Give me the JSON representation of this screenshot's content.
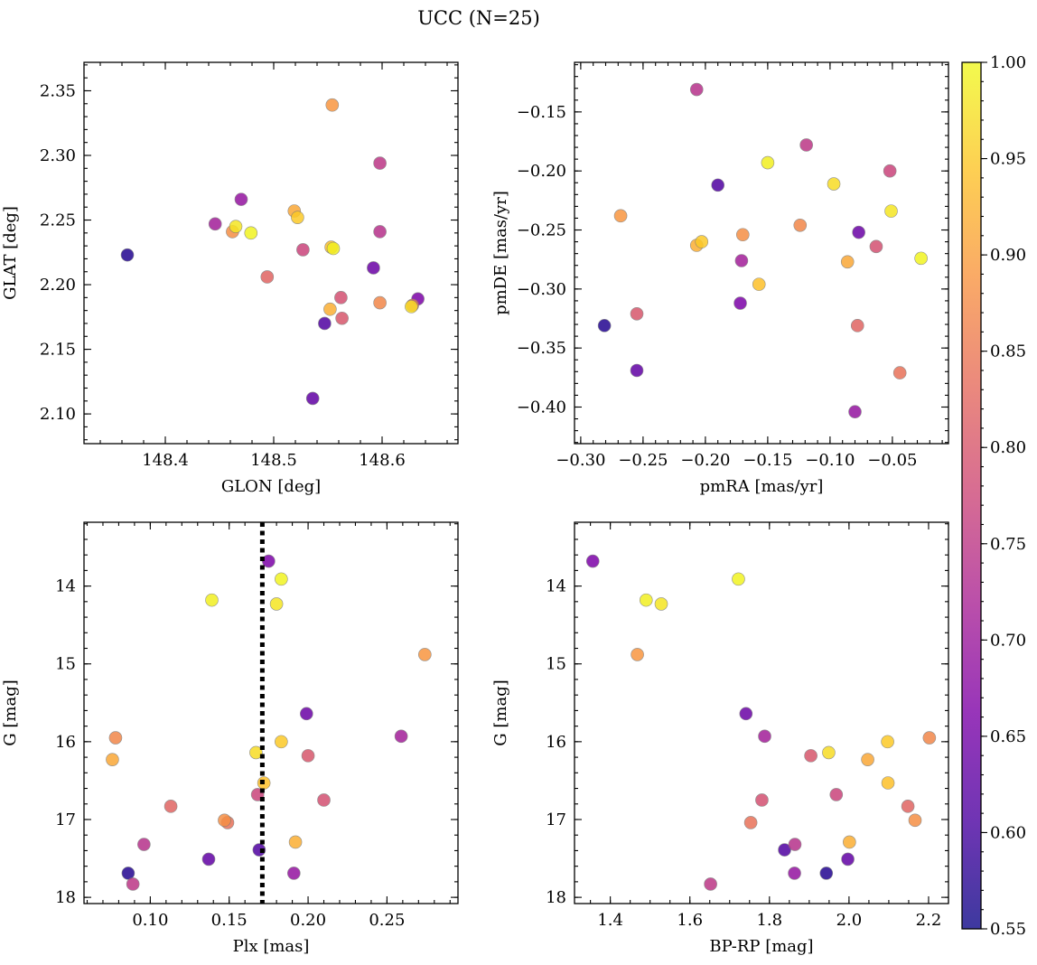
{
  "chart_data": {
    "type": "scatter",
    "title": "UCC (N=25)",
    "colormap": "plasma",
    "colorbar": {
      "range": [
        0.55,
        1.0
      ],
      "ticks": [
        "0.55",
        "0.60",
        "0.65",
        "0.70",
        "0.75",
        "0.80",
        "0.85",
        "0.90",
        "0.95",
        "1.00"
      ],
      "tick_values": [
        0.55,
        0.6,
        0.65,
        0.7,
        0.75,
        0.8,
        0.85,
        0.9,
        0.95,
        1.0
      ]
    },
    "members": [
      {
        "glon": 148.365,
        "glat": 2.223,
        "pmra": -0.281,
        "pmde": -0.331,
        "plx": 0.086,
        "g": 17.69,
        "bprp": 1.943,
        "prob": 0.57
      },
      {
        "glon": 148.536,
        "glat": 2.112,
        "pmra": -0.255,
        "pmde": -0.369,
        "plx": 0.137,
        "g": 17.51,
        "bprp": 1.997,
        "prob": 0.63
      },
      {
        "glon": 148.547,
        "glat": 2.17,
        "pmra": -0.19,
        "pmde": -0.212,
        "plx": 0.169,
        "g": 17.39,
        "bprp": 1.838,
        "prob": 0.61
      },
      {
        "glon": 148.592,
        "glat": 2.213,
        "pmra": -0.077,
        "pmde": -0.252,
        "plx": 0.199,
        "g": 15.64,
        "bprp": 1.741,
        "prob": 0.64
      },
      {
        "glon": 148.633,
        "glat": 2.189,
        "pmra": -0.172,
        "pmde": -0.312,
        "plx": 0.175,
        "g": 13.68,
        "bprp": 1.356,
        "prob": 0.66
      },
      {
        "glon": 148.47,
        "glat": 2.266,
        "pmra": -0.08,
        "pmde": -0.404,
        "plx": 0.191,
        "g": 17.69,
        "bprp": 1.863,
        "prob": 0.69
      },
      {
        "glon": 148.446,
        "glat": 2.247,
        "pmra": -0.171,
        "pmde": -0.276,
        "plx": 0.259,
        "g": 15.93,
        "bprp": 1.788,
        "prob": 0.71
      },
      {
        "glon": 148.598,
        "glat": 2.241,
        "pmra": -0.207,
        "pmde": -0.131,
        "plx": 0.096,
        "g": 17.32,
        "bprp": 1.864,
        "prob": 0.74
      },
      {
        "glon": 148.598,
        "glat": 2.294,
        "pmra": -0.119,
        "pmde": -0.178,
        "plx": 0.089,
        "g": 17.83,
        "bprp": 1.652,
        "prob": 0.75
      },
      {
        "glon": 148.527,
        "glat": 2.227,
        "pmra": -0.052,
        "pmde": -0.2,
        "plx": 0.168,
        "g": 16.68,
        "bprp": 1.968,
        "prob": 0.77
      },
      {
        "glon": 148.562,
        "glat": 2.19,
        "pmra": -0.063,
        "pmde": -0.264,
        "plx": 0.21,
        "g": 16.75,
        "bprp": 1.781,
        "prob": 0.79
      },
      {
        "glon": 148.563,
        "glat": 2.174,
        "pmra": -0.255,
        "pmde": -0.321,
        "plx": 0.2,
        "g": 16.18,
        "bprp": 1.904,
        "prob": 0.8
      },
      {
        "glon": 148.494,
        "glat": 2.206,
        "pmra": -0.078,
        "pmde": -0.331,
        "plx": 0.113,
        "g": 16.83,
        "bprp": 2.148,
        "prob": 0.82
      },
      {
        "glon": 148.628,
        "glat": 2.184,
        "pmra": -0.044,
        "pmde": -0.371,
        "plx": 0.149,
        "g": 17.04,
        "bprp": 1.753,
        "prob": 0.84
      },
      {
        "glon": 148.598,
        "glat": 2.186,
        "pmra": -0.124,
        "pmde": -0.246,
        "plx": 0.078,
        "g": 15.95,
        "bprp": 2.202,
        "prob": 0.87
      },
      {
        "glon": 148.462,
        "glat": 2.241,
        "pmra": -0.17,
        "pmde": -0.254,
        "plx": 0.147,
        "g": 17.01,
        "bprp": 2.166,
        "prob": 0.88
      },
      {
        "glon": 148.554,
        "glat": 2.339,
        "pmra": -0.268,
        "pmde": -0.238,
        "plx": 0.274,
        "g": 14.88,
        "bprp": 1.468,
        "prob": 0.89
      },
      {
        "glon": 148.519,
        "glat": 2.257,
        "pmra": -0.086,
        "pmde": -0.277,
        "plx": 0.076,
        "g": 16.23,
        "bprp": 2.047,
        "prob": 0.91
      },
      {
        "glon": 148.552,
        "glat": 2.181,
        "pmra": -0.207,
        "pmde": -0.263,
        "plx": 0.192,
        "g": 17.29,
        "bprp": 2.001,
        "prob": 0.92
      },
      {
        "glon": 148.553,
        "glat": 2.229,
        "pmra": -0.157,
        "pmde": -0.296,
        "plx": 0.172,
        "g": 16.53,
        "bprp": 2.098,
        "prob": 0.94
      },
      {
        "glon": 148.522,
        "glat": 2.252,
        "pmra": -0.203,
        "pmde": -0.26,
        "plx": 0.183,
        "g": 16.0,
        "bprp": 2.097,
        "prob": 0.95
      },
      {
        "glon": 148.627,
        "glat": 2.183,
        "pmra": -0.097,
        "pmde": -0.211,
        "plx": 0.167,
        "g": 16.14,
        "bprp": 1.949,
        "prob": 0.97
      },
      {
        "glon": 148.465,
        "glat": 2.245,
        "pmra": -0.051,
        "pmde": -0.234,
        "plx": 0.18,
        "g": 14.23,
        "bprp": 1.528,
        "prob": 0.98
      },
      {
        "glon": 148.555,
        "glat": 2.228,
        "pmra": -0.15,
        "pmde": -0.193,
        "plx": 0.139,
        "g": 14.18,
        "bprp": 1.49,
        "prob": 0.99
      },
      {
        "glon": 148.479,
        "glat": 2.24,
        "pmra": -0.027,
        "pmde": -0.274,
        "plx": 0.183,
        "g": 13.91,
        "bprp": 1.722,
        "prob": 0.995
      }
    ],
    "panels": [
      {
        "id": "glon-glat",
        "xkey": "glon",
        "ykey": "glat",
        "xlabel": "GLON [deg]",
        "ylabel": "GLAT [deg]",
        "xlim": [
          148.325,
          148.67
        ],
        "ylim": [
          2.077,
          2.372
        ],
        "y_inverted": false,
        "xticks": [
          {
            "v": 148.4,
            "label": "148.4"
          },
          {
            "v": 148.5,
            "label": "148.5"
          },
          {
            "v": 148.6,
            "label": "148.6"
          }
        ],
        "yticks": [
          {
            "v": 2.1,
            "label": "2.10"
          },
          {
            "v": 2.15,
            "label": "2.15"
          },
          {
            "v": 2.2,
            "label": "2.20"
          },
          {
            "v": 2.25,
            "label": "2.25"
          },
          {
            "v": 2.3,
            "label": "2.30"
          },
          {
            "v": 2.35,
            "label": "2.35"
          }
        ],
        "xminor": 0.02,
        "yminor": 0.01
      },
      {
        "id": "pmra-pmde",
        "xkey": "pmra",
        "ykey": "pmde",
        "xlabel": "pmRA [mas/yr]",
        "ylabel": "pmDE [mas/yr]",
        "xlim": [
          -0.305,
          -0.005
        ],
        "ylim": [
          -0.431,
          -0.108
        ],
        "y_inverted": false,
        "xticks": [
          {
            "v": -0.3,
            "label": "−0.30"
          },
          {
            "v": -0.25,
            "label": "−0.25"
          },
          {
            "v": -0.2,
            "label": "−0.20"
          },
          {
            "v": -0.15,
            "label": "−0.15"
          },
          {
            "v": -0.1,
            "label": "−0.10"
          },
          {
            "v": -0.05,
            "label": "−0.05"
          }
        ],
        "yticks": [
          {
            "v": -0.4,
            "label": "−0.40"
          },
          {
            "v": -0.35,
            "label": "−0.35"
          },
          {
            "v": -0.3,
            "label": "−0.30"
          },
          {
            "v": -0.25,
            "label": "−0.25"
          },
          {
            "v": -0.2,
            "label": "−0.20"
          },
          {
            "v": -0.15,
            "label": "−0.15"
          }
        ],
        "xminor": 0.01,
        "yminor": 0.01
      },
      {
        "id": "plx-g",
        "xkey": "plx",
        "ykey": "g",
        "xlabel": "Plx [mas]",
        "ylabel": "G [mag]",
        "xlim": [
          0.058,
          0.295
        ],
        "ylim": [
          13.18,
          18.08
        ],
        "y_inverted": true,
        "xticks": [
          {
            "v": 0.1,
            "label": "0.10"
          },
          {
            "v": 0.15,
            "label": "0.15"
          },
          {
            "v": 0.2,
            "label": "0.20"
          },
          {
            "v": 0.25,
            "label": "0.25"
          }
        ],
        "yticks": [
          {
            "v": 14,
            "label": "14"
          },
          {
            "v": 15,
            "label": "15"
          },
          {
            "v": 16,
            "label": "16"
          },
          {
            "v": 17,
            "label": "17"
          },
          {
            "v": 18,
            "label": "18"
          }
        ],
        "xminor": 0.01,
        "yminor": 0.2,
        "vline": 0.171
      },
      {
        "id": "bprp-g",
        "xkey": "bprp",
        "ykey": "g",
        "xlabel": "BP-RP [mag]",
        "ylabel": "G [mag]",
        "xlim": [
          1.31,
          2.25
        ],
        "ylim": [
          13.18,
          18.08
        ],
        "y_inverted": true,
        "xticks": [
          {
            "v": 1.4,
            "label": "1.4"
          },
          {
            "v": 1.6,
            "label": "1.6"
          },
          {
            "v": 1.8,
            "label": "1.8"
          },
          {
            "v": 2.0,
            "label": "2.0"
          },
          {
            "v": 2.2,
            "label": "2.2"
          }
        ],
        "yticks": [
          {
            "v": 14,
            "label": "14"
          },
          {
            "v": 15,
            "label": "15"
          },
          {
            "v": 16,
            "label": "16"
          },
          {
            "v": 17,
            "label": "17"
          },
          {
            "v": 18,
            "label": "18"
          }
        ],
        "xminor": 0.05,
        "yminor": 0.2
      }
    ]
  }
}
